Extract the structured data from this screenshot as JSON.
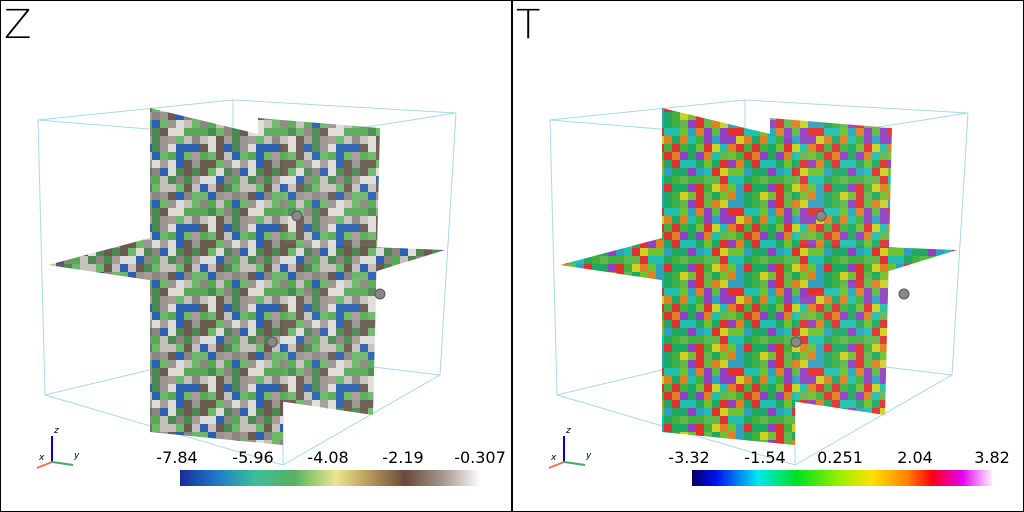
{
  "panels": [
    {
      "title": "Z",
      "colorbar": {
        "ticks": [
          "-7.84",
          "-5.96",
          "-4.08",
          "-2.19",
          "-0.307"
        ]
      },
      "axes": {
        "x": "x",
        "y": "y",
        "z": "z"
      }
    },
    {
      "title": "T",
      "colorbar": {
        "ticks": [
          "-3.32",
          "-1.54",
          "0.251",
          "2.04",
          "3.82"
        ]
      },
      "axes": {
        "x": "x",
        "y": "y",
        "z": "z"
      }
    }
  ]
}
